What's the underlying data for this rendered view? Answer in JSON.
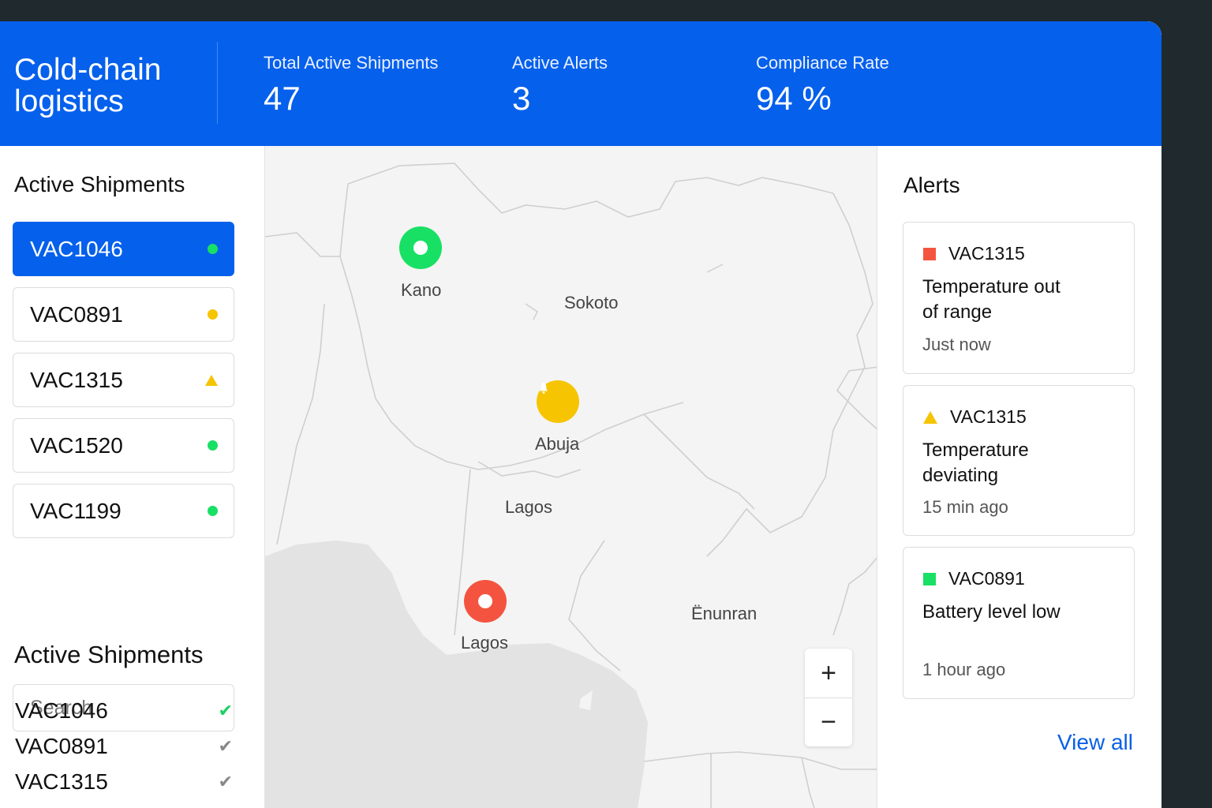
{
  "header": {
    "brand": "Cold-chain logistics",
    "stats": [
      {
        "label": "Total Active Shipments",
        "value": "47"
      },
      {
        "label": "Active Alerts",
        "value": "3"
      },
      {
        "label": "Compliance Rate",
        "value": "94 %"
      }
    ]
  },
  "sidebar": {
    "title": "Active Shipments",
    "items": [
      {
        "id": "VAC1046",
        "status": "green-dot",
        "selected": true
      },
      {
        "id": "VAC0891",
        "status": "yellow-dot"
      },
      {
        "id": "VAC1315",
        "status": "warning-triangle"
      },
      {
        "id": "VAC1520",
        "status": "green-dot"
      },
      {
        "id": "VAC1199",
        "status": "green-dot"
      }
    ],
    "search": {
      "placeholder": "Search",
      "value": ""
    },
    "list2": {
      "title": "Active Shipments",
      "items": [
        {
          "id": "VAC1046",
          "icon": "check-icon",
          "icon_color": "#18d162"
        },
        {
          "id": "VAC0891",
          "icon": "check-icon",
          "icon_color": "#888888"
        },
        {
          "id": "VAC1315",
          "icon": "check-icon",
          "icon_color": "#888888"
        }
      ]
    }
  },
  "map": {
    "labels": {
      "kano": "Kano",
      "sokoto": "Sokoto",
      "abuja": "Abuja",
      "lagos_inland": "Lagos",
      "lagos_coast": "Lagos",
      "enunran": "Ënunran"
    },
    "zoom": {
      "in": "+",
      "out": "−"
    }
  },
  "alerts": {
    "title": "Alerts",
    "items": [
      {
        "id": "VAC1315",
        "message": "Temperature out of range",
        "time": "Just now",
        "severity_icon": "red-square"
      },
      {
        "id": "VAC1315",
        "message": "Temperature deviating",
        "time": "15 min ago",
        "severity_icon": "yellow-triangle"
      },
      {
        "id": "VAC0891",
        "message": "Battery level low",
        "time": "1 hour ago",
        "severity_icon": "green-square"
      }
    ],
    "view_all": "View all"
  },
  "colors": {
    "brand": "#0560ec",
    "green": "#18e064",
    "yellow": "#f6c400",
    "red": "#f4543f"
  }
}
